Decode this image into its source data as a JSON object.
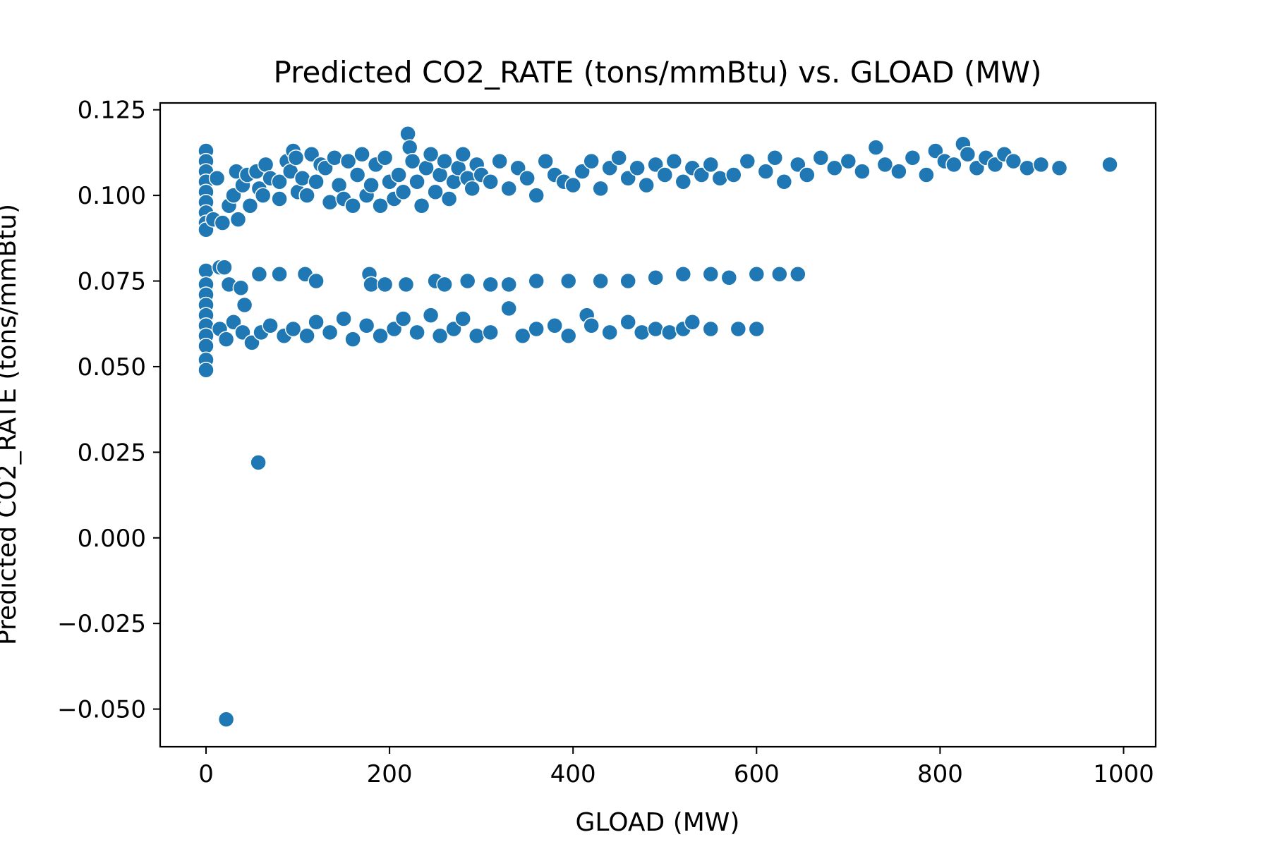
{
  "chart_data": {
    "type": "scatter",
    "title": "Predicted CO2_RATE (tons/mmBtu) vs. GLOAD (MW)",
    "xlabel": "GLOAD (MW)",
    "ylabel": "Predicted CO2_RATE (tons/mmBtu)",
    "xlim": [
      -50,
      1035
    ],
    "ylim": [
      -0.061,
      0.127
    ],
    "x_ticks": [
      0,
      200,
      400,
      600,
      800,
      1000
    ],
    "y_ticks": [
      -0.05,
      -0.025,
      0.0,
      0.025,
      0.05,
      0.075,
      0.1,
      0.125
    ],
    "x_tick_labels": [
      "0",
      "200",
      "400",
      "600",
      "800",
      "1000"
    ],
    "y_tick_labels": [
      "−0.050",
      "−0.025",
      "0.000",
      "0.025",
      "0.050",
      "0.075",
      "0.100",
      "0.125"
    ],
    "grid": false,
    "legend": "none",
    "marker_color": "#1f77b4",
    "marker_edge_color": "#ffffff",
    "points": [
      {
        "x": 0,
        "y": 0.113
      },
      {
        "x": 0,
        "y": 0.11
      },
      {
        "x": 0,
        "y": 0.107
      },
      {
        "x": 0,
        "y": 0.104
      },
      {
        "x": 0,
        "y": 0.101
      },
      {
        "x": 0,
        "y": 0.098
      },
      {
        "x": 0,
        "y": 0.095
      },
      {
        "x": 0,
        "y": 0.092
      },
      {
        "x": 0,
        "y": 0.09
      },
      {
        "x": 8,
        "y": 0.093
      },
      {
        "x": 12,
        "y": 0.105
      },
      {
        "x": 18,
        "y": 0.092
      },
      {
        "x": 25,
        "y": 0.097
      },
      {
        "x": 30,
        "y": 0.1
      },
      {
        "x": 33,
        "y": 0.107
      },
      {
        "x": 35,
        "y": 0.093
      },
      {
        "x": 40,
        "y": 0.103
      },
      {
        "x": 45,
        "y": 0.106
      },
      {
        "x": 48,
        "y": 0.097
      },
      {
        "x": 55,
        "y": 0.107
      },
      {
        "x": 58,
        "y": 0.102
      },
      {
        "x": 62,
        "y": 0.1
      },
      {
        "x": 65,
        "y": 0.109
      },
      {
        "x": 70,
        "y": 0.105
      },
      {
        "x": 80,
        "y": 0.104
      },
      {
        "x": 80,
        "y": 0.099
      },
      {
        "x": 88,
        "y": 0.11
      },
      {
        "x": 92,
        "y": 0.107
      },
      {
        "x": 95,
        "y": 0.113
      },
      {
        "x": 98,
        "y": 0.111
      },
      {
        "x": 100,
        "y": 0.101
      },
      {
        "x": 105,
        "y": 0.105
      },
      {
        "x": 110,
        "y": 0.1
      },
      {
        "x": 115,
        "y": 0.112
      },
      {
        "x": 120,
        "y": 0.104
      },
      {
        "x": 125,
        "y": 0.109
      },
      {
        "x": 130,
        "y": 0.108
      },
      {
        "x": 135,
        "y": 0.098
      },
      {
        "x": 140,
        "y": 0.111
      },
      {
        "x": 145,
        "y": 0.103
      },
      {
        "x": 150,
        "y": 0.099
      },
      {
        "x": 155,
        "y": 0.11
      },
      {
        "x": 160,
        "y": 0.097
      },
      {
        "x": 165,
        "y": 0.106
      },
      {
        "x": 170,
        "y": 0.112
      },
      {
        "x": 175,
        "y": 0.1
      },
      {
        "x": 180,
        "y": 0.103
      },
      {
        "x": 185,
        "y": 0.109
      },
      {
        "x": 190,
        "y": 0.097
      },
      {
        "x": 195,
        "y": 0.111
      },
      {
        "x": 200,
        "y": 0.104
      },
      {
        "x": 205,
        "y": 0.099
      },
      {
        "x": 210,
        "y": 0.106
      },
      {
        "x": 215,
        "y": 0.101
      },
      {
        "x": 220,
        "y": 0.118
      },
      {
        "x": 222,
        "y": 0.114
      },
      {
        "x": 225,
        "y": 0.11
      },
      {
        "x": 230,
        "y": 0.104
      },
      {
        "x": 235,
        "y": 0.097
      },
      {
        "x": 240,
        "y": 0.108
      },
      {
        "x": 245,
        "y": 0.112
      },
      {
        "x": 250,
        "y": 0.101
      },
      {
        "x": 255,
        "y": 0.106
      },
      {
        "x": 260,
        "y": 0.11
      },
      {
        "x": 265,
        "y": 0.099
      },
      {
        "x": 270,
        "y": 0.104
      },
      {
        "x": 275,
        "y": 0.108
      },
      {
        "x": 280,
        "y": 0.112
      },
      {
        "x": 285,
        "y": 0.105
      },
      {
        "x": 290,
        "y": 0.102
      },
      {
        "x": 295,
        "y": 0.109
      },
      {
        "x": 300,
        "y": 0.106
      },
      {
        "x": 310,
        "y": 0.104
      },
      {
        "x": 320,
        "y": 0.11
      },
      {
        "x": 330,
        "y": 0.102
      },
      {
        "x": 340,
        "y": 0.108
      },
      {
        "x": 350,
        "y": 0.105
      },
      {
        "x": 360,
        "y": 0.1
      },
      {
        "x": 370,
        "y": 0.11
      },
      {
        "x": 380,
        "y": 0.106
      },
      {
        "x": 390,
        "y": 0.104
      },
      {
        "x": 400,
        "y": 0.103
      },
      {
        "x": 410,
        "y": 0.107
      },
      {
        "x": 420,
        "y": 0.11
      },
      {
        "x": 430,
        "y": 0.102
      },
      {
        "x": 440,
        "y": 0.108
      },
      {
        "x": 450,
        "y": 0.111
      },
      {
        "x": 460,
        "y": 0.105
      },
      {
        "x": 470,
        "y": 0.108
      },
      {
        "x": 480,
        "y": 0.103
      },
      {
        "x": 490,
        "y": 0.109
      },
      {
        "x": 500,
        "y": 0.106
      },
      {
        "x": 510,
        "y": 0.11
      },
      {
        "x": 520,
        "y": 0.104
      },
      {
        "x": 530,
        "y": 0.108
      },
      {
        "x": 540,
        "y": 0.106
      },
      {
        "x": 550,
        "y": 0.109
      },
      {
        "x": 560,
        "y": 0.105
      },
      {
        "x": 575,
        "y": 0.106
      },
      {
        "x": 590,
        "y": 0.11
      },
      {
        "x": 610,
        "y": 0.107
      },
      {
        "x": 620,
        "y": 0.111
      },
      {
        "x": 630,
        "y": 0.104
      },
      {
        "x": 645,
        "y": 0.109
      },
      {
        "x": 655,
        "y": 0.106
      },
      {
        "x": 670,
        "y": 0.111
      },
      {
        "x": 685,
        "y": 0.108
      },
      {
        "x": 700,
        "y": 0.11
      },
      {
        "x": 715,
        "y": 0.107
      },
      {
        "x": 730,
        "y": 0.114
      },
      {
        "x": 740,
        "y": 0.109
      },
      {
        "x": 755,
        "y": 0.107
      },
      {
        "x": 770,
        "y": 0.111
      },
      {
        "x": 785,
        "y": 0.106
      },
      {
        "x": 795,
        "y": 0.113
      },
      {
        "x": 805,
        "y": 0.11
      },
      {
        "x": 815,
        "y": 0.109
      },
      {
        "x": 825,
        "y": 0.115
      },
      {
        "x": 830,
        "y": 0.112
      },
      {
        "x": 840,
        "y": 0.108
      },
      {
        "x": 850,
        "y": 0.111
      },
      {
        "x": 860,
        "y": 0.109
      },
      {
        "x": 870,
        "y": 0.112
      },
      {
        "x": 880,
        "y": 0.11
      },
      {
        "x": 895,
        "y": 0.108
      },
      {
        "x": 910,
        "y": 0.109
      },
      {
        "x": 930,
        "y": 0.108
      },
      {
        "x": 985,
        "y": 0.109
      },
      {
        "x": 0,
        "y": 0.078
      },
      {
        "x": 0,
        "y": 0.074
      },
      {
        "x": 0,
        "y": 0.071
      },
      {
        "x": 0,
        "y": 0.068
      },
      {
        "x": 0,
        "y": 0.065
      },
      {
        "x": 0,
        "y": 0.062
      },
      {
        "x": 0,
        "y": 0.059
      },
      {
        "x": 0,
        "y": 0.056
      },
      {
        "x": 0,
        "y": 0.052
      },
      {
        "x": 0,
        "y": 0.049
      },
      {
        "x": 15,
        "y": 0.079
      },
      {
        "x": 20,
        "y": 0.079
      },
      {
        "x": 25,
        "y": 0.074
      },
      {
        "x": 38,
        "y": 0.073
      },
      {
        "x": 58,
        "y": 0.077
      },
      {
        "x": 80,
        "y": 0.077
      },
      {
        "x": 108,
        "y": 0.077
      },
      {
        "x": 120,
        "y": 0.075
      },
      {
        "x": 178,
        "y": 0.077
      },
      {
        "x": 180,
        "y": 0.074
      },
      {
        "x": 195,
        "y": 0.074
      },
      {
        "x": 218,
        "y": 0.074
      },
      {
        "x": 250,
        "y": 0.075
      },
      {
        "x": 260,
        "y": 0.074
      },
      {
        "x": 285,
        "y": 0.075
      },
      {
        "x": 310,
        "y": 0.074
      },
      {
        "x": 330,
        "y": 0.074
      },
      {
        "x": 360,
        "y": 0.075
      },
      {
        "x": 395,
        "y": 0.075
      },
      {
        "x": 430,
        "y": 0.075
      },
      {
        "x": 460,
        "y": 0.075
      },
      {
        "x": 490,
        "y": 0.076
      },
      {
        "x": 520,
        "y": 0.077
      },
      {
        "x": 550,
        "y": 0.077
      },
      {
        "x": 570,
        "y": 0.076
      },
      {
        "x": 600,
        "y": 0.077
      },
      {
        "x": 625,
        "y": 0.077
      },
      {
        "x": 645,
        "y": 0.077
      },
      {
        "x": 15,
        "y": 0.061
      },
      {
        "x": 22,
        "y": 0.058
      },
      {
        "x": 30,
        "y": 0.063
      },
      {
        "x": 40,
        "y": 0.06
      },
      {
        "x": 42,
        "y": 0.068
      },
      {
        "x": 50,
        "y": 0.057
      },
      {
        "x": 60,
        "y": 0.06
      },
      {
        "x": 70,
        "y": 0.062
      },
      {
        "x": 85,
        "y": 0.059
      },
      {
        "x": 95,
        "y": 0.061
      },
      {
        "x": 110,
        "y": 0.059
      },
      {
        "x": 120,
        "y": 0.063
      },
      {
        "x": 135,
        "y": 0.06
      },
      {
        "x": 150,
        "y": 0.064
      },
      {
        "x": 160,
        "y": 0.058
      },
      {
        "x": 175,
        "y": 0.062
      },
      {
        "x": 190,
        "y": 0.059
      },
      {
        "x": 205,
        "y": 0.061
      },
      {
        "x": 215,
        "y": 0.064
      },
      {
        "x": 230,
        "y": 0.06
      },
      {
        "x": 245,
        "y": 0.065
      },
      {
        "x": 255,
        "y": 0.059
      },
      {
        "x": 270,
        "y": 0.061
      },
      {
        "x": 280,
        "y": 0.064
      },
      {
        "x": 295,
        "y": 0.059
      },
      {
        "x": 310,
        "y": 0.06
      },
      {
        "x": 330,
        "y": 0.067
      },
      {
        "x": 345,
        "y": 0.059
      },
      {
        "x": 360,
        "y": 0.061
      },
      {
        "x": 380,
        "y": 0.062
      },
      {
        "x": 395,
        "y": 0.059
      },
      {
        "x": 415,
        "y": 0.065
      },
      {
        "x": 420,
        "y": 0.062
      },
      {
        "x": 440,
        "y": 0.06
      },
      {
        "x": 460,
        "y": 0.063
      },
      {
        "x": 475,
        "y": 0.06
      },
      {
        "x": 490,
        "y": 0.061
      },
      {
        "x": 505,
        "y": 0.06
      },
      {
        "x": 520,
        "y": 0.061
      },
      {
        "x": 530,
        "y": 0.063
      },
      {
        "x": 550,
        "y": 0.061
      },
      {
        "x": 580,
        "y": 0.061
      },
      {
        "x": 600,
        "y": 0.061
      },
      {
        "x": 57,
        "y": 0.022
      },
      {
        "x": 22,
        "y": -0.053
      }
    ]
  }
}
